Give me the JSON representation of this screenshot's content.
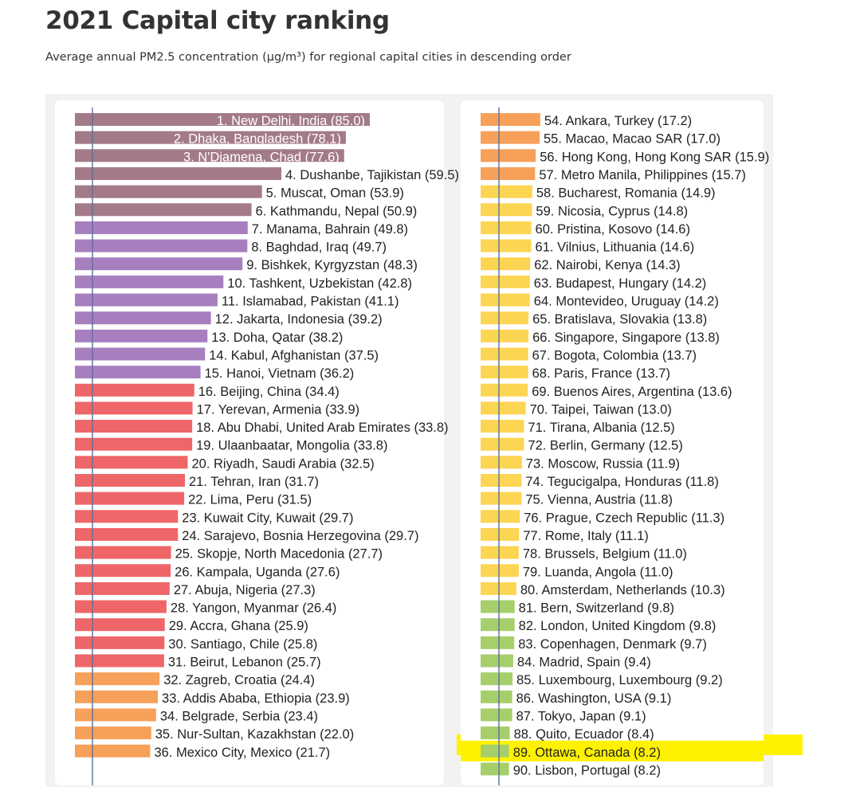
{
  "header": {
    "title": "2021 Capital city ranking",
    "subtitle": "Average annual PM2.5 concentration (μg/m³) for regional capital cities in descending order"
  },
  "colors": {
    "maroon": "#a37a88",
    "purple": "#a77fbf",
    "red": "#ee6668",
    "orange": "#f7a05a",
    "yellow": "#fcd552",
    "green": "#a6cf6b",
    "guideline": "#5a6f9e",
    "highlight": "#fff200"
  },
  "highlight": {
    "rank": 89
  },
  "chart_data": {
    "type": "bar",
    "orientation": "horizontal",
    "title": "2021 Capital city ranking",
    "subtitle": "Average annual PM2.5 concentration (μg/m³) for regional capital cities in descending order",
    "unit": "μg/m³",
    "guideline_value": 5,
    "columns": [
      {
        "xlim": [
          0,
          85
        ],
        "bars": [
          {
            "label": "1. New Delhi, India (85.0)",
            "value": 85.0,
            "color": "maroon",
            "inside": true
          },
          {
            "label": "2. Dhaka, Bangladesh (78.1)",
            "value": 78.1,
            "color": "maroon",
            "inside": true
          },
          {
            "label": "3. N'Djamena, Chad  (77.6)",
            "value": 77.6,
            "color": "maroon",
            "inside": true
          },
          {
            "label": "4. Dushanbe, Tajikistan (59.5)",
            "value": 59.5,
            "color": "maroon"
          },
          {
            "label": "5. Muscat, Oman (53.9)",
            "value": 53.9,
            "color": "maroon"
          },
          {
            "label": "6. Kathmandu, Nepal (50.9)",
            "value": 50.9,
            "color": "maroon"
          },
          {
            "label": "7. Manama, Bahrain (49.8)",
            "value": 49.8,
            "color": "purple"
          },
          {
            "label": "8. Baghdad, Iraq (49.7)",
            "value": 49.7,
            "color": "purple"
          },
          {
            "label": "9. Bishkek, Kyrgyzstan (48.3)",
            "value": 48.3,
            "color": "purple"
          },
          {
            "label": "10. Tashkent, Uzbekistan (42.8)",
            "value": 42.8,
            "color": "purple"
          },
          {
            "label": "11. Islamabad, Pakistan (41.1)",
            "value": 41.1,
            "color": "purple"
          },
          {
            "label": "12. Jakarta, Indonesia (39.2)",
            "value": 39.2,
            "color": "purple"
          },
          {
            "label": "13. Doha, Qatar (38.2)",
            "value": 38.2,
            "color": "purple"
          },
          {
            "label": "14. Kabul, Afghanistan (37.5)",
            "value": 37.5,
            "color": "purple"
          },
          {
            "label": "15. Hanoi, Vietnam (36.2)",
            "value": 36.2,
            "color": "purple"
          },
          {
            "label": "16. Beijing, China (34.4)",
            "value": 34.4,
            "color": "red"
          },
          {
            "label": "17. Yerevan, Armenia (33.9)",
            "value": 33.9,
            "color": "red"
          },
          {
            "label": "18. Abu Dhabi, United Arab Emirates (33.8)",
            "value": 33.8,
            "color": "red"
          },
          {
            "label": "19. Ulaanbaatar, Mongolia (33.8)",
            "value": 33.8,
            "color": "red"
          },
          {
            "label": "20. Riyadh, Saudi Arabia (32.5)",
            "value": 32.5,
            "color": "red"
          },
          {
            "label": "21. Tehran, Iran (31.7)",
            "value": 31.7,
            "color": "red"
          },
          {
            "label": "22. Lima, Peru (31.5)",
            "value": 31.5,
            "color": "red"
          },
          {
            "label": "23. Kuwait City, Kuwait (29.7)",
            "value": 29.7,
            "color": "red"
          },
          {
            "label": "24. Sarajevo, Bosnia Herzegovina (29.7)",
            "value": 29.7,
            "color": "red"
          },
          {
            "label": "25. Skopje, North Macedonia (27.7)",
            "value": 27.7,
            "color": "red"
          },
          {
            "label": "26. Kampala, Uganda (27.6)",
            "value": 27.6,
            "color": "red"
          },
          {
            "label": "27. Abuja, Nigeria (27.3)",
            "value": 27.3,
            "color": "red"
          },
          {
            "label": "28. Yangon, Myanmar (26.4)",
            "value": 26.4,
            "color": "red"
          },
          {
            "label": "29. Accra, Ghana (25.9)",
            "value": 25.9,
            "color": "red"
          },
          {
            "label": "30. Santiago, Chile (25.8)",
            "value": 25.8,
            "color": "red"
          },
          {
            "label": "31. Beirut, Lebanon (25.7)",
            "value": 25.7,
            "color": "red"
          },
          {
            "label": "32. Zagreb, Croatia (24.4)",
            "value": 24.4,
            "color": "orange"
          },
          {
            "label": "33. Addis Ababa, Ethiopia (23.9)",
            "value": 23.9,
            "color": "orange"
          },
          {
            "label": "34. Belgrade, Serbia (23.4)",
            "value": 23.4,
            "color": "orange"
          },
          {
            "label": "35. Nur-Sultan, Kazakhstan (22.0)",
            "value": 22.0,
            "color": "orange"
          },
          {
            "label": "36. Mexico City, Mexico (21.7)",
            "value": 21.7,
            "color": "orange"
          }
        ]
      },
      {
        "xlim": [
          0,
          85
        ],
        "bars": [
          {
            "label": "54. Ankara, Turkey (17.2)",
            "value": 17.2,
            "color": "orange"
          },
          {
            "label": "55. Macao, Macao SAR (17.0)",
            "value": 17.0,
            "color": "orange"
          },
          {
            "label": "56. Hong Kong, Hong Kong SAR (15.9)",
            "value": 15.9,
            "color": "orange"
          },
          {
            "label": "57. Metro Manila, Philippines (15.7)",
            "value": 15.7,
            "color": "orange"
          },
          {
            "label": "58. Bucharest, Romania (14.9)",
            "value": 14.9,
            "color": "yellow"
          },
          {
            "label": "59. Nicosia, Cyprus (14.8)",
            "value": 14.8,
            "color": "yellow"
          },
          {
            "label": "60. Pristina, Kosovo (14.6)",
            "value": 14.6,
            "color": "yellow"
          },
          {
            "label": "61. Vilnius, Lithuania (14.6)",
            "value": 14.6,
            "color": "yellow"
          },
          {
            "label": "62. Nairobi, Kenya (14.3)",
            "value": 14.3,
            "color": "yellow"
          },
          {
            "label": "63. Budapest, Hungary (14.2)",
            "value": 14.2,
            "color": "yellow"
          },
          {
            "label": "64. Montevideo, Uruguay (14.2)",
            "value": 14.2,
            "color": "yellow"
          },
          {
            "label": "65. Bratislava, Slovakia (13.8)",
            "value": 13.8,
            "color": "yellow"
          },
          {
            "label": "66. Singapore, Singapore (13.8)",
            "value": 13.8,
            "color": "yellow"
          },
          {
            "label": "67. Bogota, Colombia (13.7)",
            "value": 13.7,
            "color": "yellow"
          },
          {
            "label": "68. Paris, France (13.7)",
            "value": 13.7,
            "color": "yellow"
          },
          {
            "label": "69. Buenos Aires, Argentina (13.6)",
            "value": 13.6,
            "color": "yellow"
          },
          {
            "label": "70. Taipei, Taiwan (13.0)",
            "value": 13.0,
            "color": "yellow"
          },
          {
            "label": "71. Tirana, Albania (12.5)",
            "value": 12.5,
            "color": "yellow"
          },
          {
            "label": "72. Berlin, Germany (12.5)",
            "value": 12.5,
            "color": "yellow"
          },
          {
            "label": "73. Moscow, Russia (11.9)",
            "value": 11.9,
            "color": "yellow"
          },
          {
            "label": "74. Tegucigalpa, Honduras (11.8)",
            "value": 11.8,
            "color": "yellow"
          },
          {
            "label": "75. Vienna, Austria (11.8)",
            "value": 11.8,
            "color": "yellow"
          },
          {
            "label": "76. Prague, Czech Republic (11.3)",
            "value": 11.3,
            "color": "yellow"
          },
          {
            "label": "77. Rome, Italy (11.1)",
            "value": 11.1,
            "color": "yellow"
          },
          {
            "label": "78. Brussels, Belgium (11.0)",
            "value": 11.0,
            "color": "yellow"
          },
          {
            "label": "79. Luanda, Angola (11.0)",
            "value": 11.0,
            "color": "yellow"
          },
          {
            "label": "80. Amsterdam, Netherlands (10.3)",
            "value": 10.3,
            "color": "yellow"
          },
          {
            "label": "81. Bern, Switzerland (9.8)",
            "value": 9.8,
            "color": "green"
          },
          {
            "label": "82. London, United Kingdom (9.8)",
            "value": 9.8,
            "color": "green"
          },
          {
            "label": "83. Copenhagen, Denmark (9.7)",
            "value": 9.7,
            "color": "green"
          },
          {
            "label": "84. Madrid, Spain (9.4)",
            "value": 9.4,
            "color": "green"
          },
          {
            "label": "85. Luxembourg, Luxembourg (9.2)",
            "value": 9.2,
            "color": "green"
          },
          {
            "label": "86. Washington, USA (9.1)",
            "value": 9.1,
            "color": "green"
          },
          {
            "label": "87. Tokyo, Japan (9.1)",
            "value": 9.1,
            "color": "green"
          },
          {
            "label": "88. Quito, Ecuador (8.4)",
            "value": 8.4,
            "color": "green"
          },
          {
            "label": "89. Ottawa, Canada (8.2)",
            "value": 8.2,
            "color": "green"
          },
          {
            "label": "90. Lisbon, Portugal (8.2)",
            "value": 8.2,
            "color": "green"
          }
        ]
      }
    ]
  }
}
